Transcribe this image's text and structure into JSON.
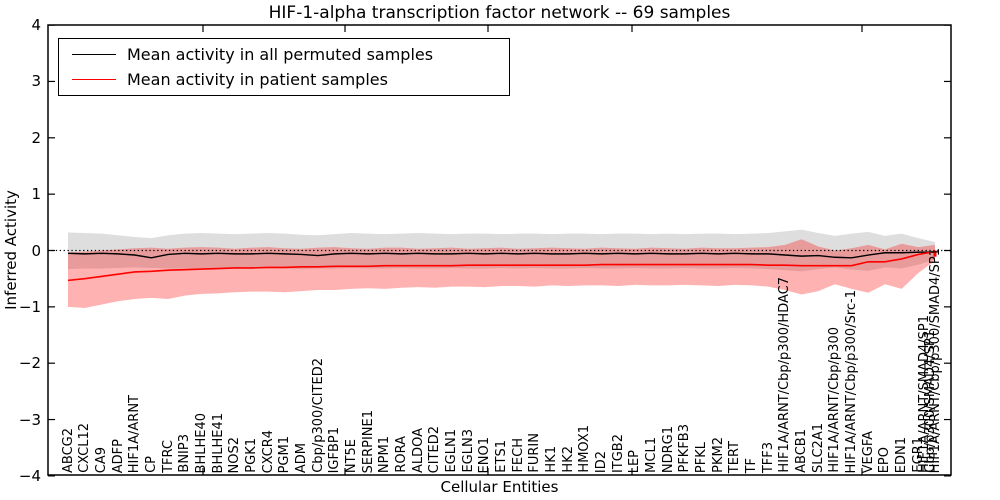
{
  "title": "HIF-1-alpha transcription factor network -- 69 samples",
  "axes": {
    "ylabel": "Inferred Activity",
    "xlabel": "Cellular Entities",
    "y_tick_labels": [
      "4",
      "3",
      "2",
      "1",
      "0",
      "−1",
      "−2",
      "−3",
      "−4"
    ]
  },
  "legend": {
    "entries": [
      {
        "label": "Mean activity in all permuted samples",
        "color": "#000000"
      },
      {
        "label": "Mean activity in patient samples",
        "color": "#ff0000"
      }
    ]
  },
  "chart_data": {
    "type": "line",
    "title": "HIF-1-alpha transcription factor network -- 69 samples",
    "xlabel": "Cellular Entities",
    "ylabel": "Inferred Activity",
    "ylim": [
      -4,
      4
    ],
    "zero_reference_line": 0,
    "grid": false,
    "legend_position": "upper left",
    "categories": [
      "ABCG2",
      "CXCL12",
      "CA9",
      "ADFP",
      "HIF1A/ARNT",
      "CP",
      "TFRC",
      "BNIP3",
      "BHLHE40",
      "BHLHE41",
      "NOS2",
      "PGK1",
      "CXCR4",
      "PGM1",
      "ADM",
      "Cbp/p300/CITED2",
      "IGFBP1",
      "NT5E",
      "SERPINE1",
      "NPM1",
      "RORA",
      "ALDOA",
      "CITED2",
      "EGLN1",
      "EGLN3",
      "ENO1",
      "ETS1",
      "FECH",
      "FURIN",
      "HK1",
      "HK2",
      "HMOX1",
      "ID2",
      "ITGB2",
      "LEP",
      "MCL1",
      "NDRG1",
      "PFKFB3",
      "PFKL",
      "PKM2",
      "TERT",
      "TF",
      "TFF3",
      "HIF1A/ARNT/Cbp/p300/HDAC7",
      "ABCB1",
      "SLC2A1",
      "HIF1A/ARNT/Cbp/p300",
      "HIF1A/ARNT/Cbp/p300/Src-1",
      "VEGFA",
      "EPO",
      "EDN1",
      "EGR1",
      "HIF1A/ARNT/Cbp/p300/SMAD4/SP1"
    ],
    "extra_overlapping_labels": [
      "HIF1A/ARNT/SMAD4/SP1",
      "Cbp/p300/SMAD4/SP1"
    ],
    "series": [
      {
        "name": "Mean activity in all permuted samples",
        "color": "#000000",
        "values": [
          -0.05,
          -0.06,
          -0.05,
          -0.06,
          -0.08,
          -0.13,
          -0.07,
          -0.05,
          -0.06,
          -0.05,
          -0.06,
          -0.06,
          -0.05,
          -0.06,
          -0.07,
          -0.09,
          -0.06,
          -0.05,
          -0.06,
          -0.05,
          -0.06,
          -0.05,
          -0.06,
          -0.06,
          -0.05,
          -0.06,
          -0.05,
          -0.06,
          -0.05,
          -0.06,
          -0.06,
          -0.05,
          -0.06,
          -0.05,
          -0.06,
          -0.05,
          -0.06,
          -0.06,
          -0.05,
          -0.06,
          -0.05,
          -0.06,
          -0.06,
          -0.08,
          -0.1,
          -0.09,
          -0.12,
          -0.13,
          -0.08,
          -0.04,
          -0.04,
          -0.03,
          -0.03
        ]
      },
      {
        "name": "Mean activity in patient samples",
        "color": "#ff0000",
        "values": [
          -0.53,
          -0.5,
          -0.46,
          -0.42,
          -0.38,
          -0.37,
          -0.35,
          -0.34,
          -0.33,
          -0.32,
          -0.31,
          -0.31,
          -0.3,
          -0.3,
          -0.29,
          -0.29,
          -0.28,
          -0.28,
          -0.28,
          -0.27,
          -0.27,
          -0.27,
          -0.27,
          -0.27,
          -0.26,
          -0.26,
          -0.26,
          -0.26,
          -0.26,
          -0.26,
          -0.26,
          -0.26,
          -0.25,
          -0.25,
          -0.25,
          -0.25,
          -0.25,
          -0.25,
          -0.25,
          -0.25,
          -0.25,
          -0.25,
          -0.26,
          -0.26,
          -0.27,
          -0.27,
          -0.27,
          -0.27,
          -0.2,
          -0.2,
          -0.15,
          -0.07,
          -0.02
        ]
      }
    ],
    "bands": [
      {
        "name": "permuted samples range",
        "color": "rgba(0,0,0,0.13)",
        "upper": [
          0.32,
          0.31,
          0.3,
          0.27,
          0.24,
          0.22,
          0.27,
          0.3,
          0.31,
          0.3,
          0.29,
          0.3,
          0.31,
          0.3,
          0.28,
          0.27,
          0.29,
          0.31,
          0.3,
          0.29,
          0.3,
          0.31,
          0.3,
          0.29,
          0.3,
          0.3,
          0.29,
          0.3,
          0.3,
          0.29,
          0.3,
          0.3,
          0.29,
          0.3,
          0.3,
          0.29,
          0.3,
          0.29,
          0.3,
          0.3,
          0.29,
          0.3,
          0.31,
          0.34,
          0.37,
          0.31,
          0.26,
          0.3,
          0.33,
          0.26,
          0.3,
          0.22,
          0.15
        ],
        "lower": [
          -0.33,
          -0.32,
          -0.32,
          -0.31,
          -0.3,
          -0.31,
          -0.32,
          -0.32,
          -0.31,
          -0.32,
          -0.32,
          -0.31,
          -0.32,
          -0.32,
          -0.33,
          -0.32,
          -0.32,
          -0.31,
          -0.32,
          -0.32,
          -0.31,
          -0.32,
          -0.32,
          -0.31,
          -0.32,
          -0.32,
          -0.31,
          -0.32,
          -0.31,
          -0.32,
          -0.32,
          -0.31,
          -0.32,
          -0.32,
          -0.31,
          -0.32,
          -0.32,
          -0.31,
          -0.32,
          -0.32,
          -0.31,
          -0.32,
          -0.33,
          -0.35,
          -0.37,
          -0.33,
          -0.3,
          -0.34,
          -0.36,
          -0.3,
          -0.32,
          -0.25,
          -0.16
        ]
      },
      {
        "name": "patient samples range",
        "color": "rgba(255,0,0,0.30)",
        "upper": [
          -0.03,
          -0.02,
          0.0,
          0.02,
          0.04,
          0.05,
          0.03,
          0.05,
          0.06,
          0.05,
          0.03,
          0.05,
          0.06,
          0.04,
          0.03,
          0.05,
          0.06,
          0.04,
          0.03,
          0.05,
          0.05,
          0.03,
          0.04,
          0.05,
          0.03,
          0.04,
          0.05,
          0.03,
          0.04,
          0.05,
          0.04,
          0.03,
          0.05,
          0.04,
          0.03,
          0.05,
          0.04,
          0.03,
          0.05,
          0.04,
          0.04,
          0.05,
          0.06,
          0.1,
          0.2,
          0.07,
          0.0,
          0.04,
          0.1,
          0.02,
          0.12,
          0.06,
          0.1
        ],
        "lower": [
          -1.0,
          -1.02,
          -0.96,
          -0.9,
          -0.86,
          -0.84,
          -0.86,
          -0.8,
          -0.77,
          -0.76,
          -0.74,
          -0.73,
          -0.73,
          -0.74,
          -0.72,
          -0.7,
          -0.7,
          -0.68,
          -0.67,
          -0.68,
          -0.66,
          -0.65,
          -0.66,
          -0.64,
          -0.64,
          -0.65,
          -0.63,
          -0.63,
          -0.64,
          -0.62,
          -0.63,
          -0.62,
          -0.62,
          -0.63,
          -0.61,
          -0.62,
          -0.62,
          -0.61,
          -0.62,
          -0.63,
          -0.61,
          -0.62,
          -0.64,
          -0.7,
          -0.78,
          -0.72,
          -0.6,
          -0.68,
          -0.75,
          -0.6,
          -0.68,
          -0.4,
          -0.18
        ]
      }
    ]
  }
}
